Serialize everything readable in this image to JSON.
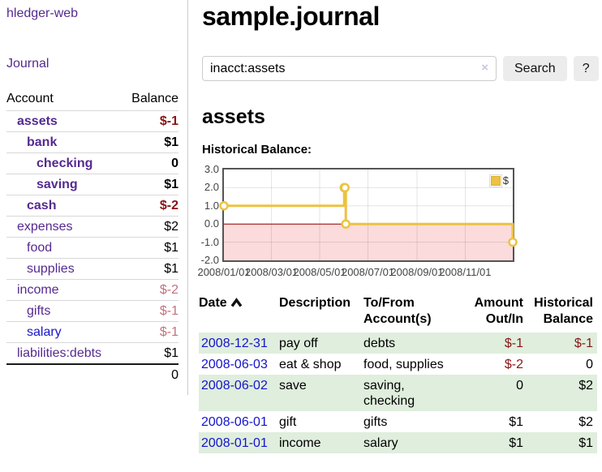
{
  "app": {
    "title": "hledger-web"
  },
  "sidebar": {
    "journal_link": "Journal",
    "accounts": {
      "headers": {
        "account": "Account",
        "balance": "Balance"
      },
      "rows": [
        {
          "account": "assets",
          "balance": "$-1",
          "level": 1
        },
        {
          "account": "bank",
          "balance": "$1",
          "level": 2
        },
        {
          "account": "checking",
          "balance": "0",
          "level": 3
        },
        {
          "account": "saving",
          "balance": "$1",
          "level": 3
        },
        {
          "account": "cash",
          "balance": "$-2",
          "level": 2
        },
        {
          "account": "expenses",
          "balance": "$2",
          "level": 1
        },
        {
          "account": "food",
          "balance": "$1",
          "level": 2
        },
        {
          "account": "supplies",
          "balance": "$1",
          "level": 2
        },
        {
          "account": "income",
          "balance": "$-2",
          "level": 1
        },
        {
          "account": "gifts",
          "balance": "$-1",
          "level": 2
        },
        {
          "account": "salary",
          "balance": "$-1",
          "level": 2
        },
        {
          "account": "liabilities:debts",
          "balance": "$1",
          "level": 1
        }
      ],
      "total": "0"
    }
  },
  "main": {
    "title": "sample.journal",
    "search": {
      "value": "inacct:assets",
      "clear_icon": "×",
      "button_label": "Search",
      "help_label": "?"
    },
    "account_heading": "assets",
    "register": {
      "headers": {
        "date": "Date",
        "description": "Description",
        "accounts_line1": "To/From",
        "accounts_line2": "Account(s)",
        "amount_line1": "Amount",
        "amount_line2": "Out/In",
        "balance_line1": "Historical",
        "balance_line2": "Balance"
      },
      "rows": [
        {
          "date": "2008-12-31",
          "description": "pay off",
          "accounts": "debts",
          "amount": "$-1",
          "balance": "$-1"
        },
        {
          "date": "2008-06-03",
          "description": "eat & shop",
          "accounts": "food, supplies",
          "amount": "$-2",
          "balance": "0"
        },
        {
          "date": "2008-06-02",
          "description": "save",
          "accounts": "saving, checking",
          "amount": "0",
          "balance": "$2"
        },
        {
          "date": "2008-06-01",
          "description": "gift",
          "accounts": "gifts",
          "amount": "$1",
          "balance": "$2"
        },
        {
          "date": "2008-01-01",
          "description": "income",
          "accounts": "salary",
          "amount": "$1",
          "balance": "$1"
        }
      ]
    }
  },
  "chart_data": {
    "type": "line",
    "title": "Historical Balance:",
    "steps": true,
    "series": [
      {
        "name": "$",
        "color": "#edc240",
        "points": [
          [
            "2008-01-01",
            1
          ],
          [
            "2008-06-01",
            2
          ],
          [
            "2008-06-02",
            2
          ],
          [
            "2008-06-03",
            0
          ],
          [
            "2008-12-31",
            -1
          ]
        ]
      }
    ],
    "xlim": [
      "2008-01-01",
      "2008-12-31"
    ],
    "ylim": [
      -2,
      3
    ],
    "x_ticks": [
      "2008/01/01",
      "2008/03/01",
      "2008/05/01",
      "2008/07/01",
      "2008/09/01",
      "2008/11/01"
    ],
    "y_ticks": [
      "3.0",
      "2.0",
      "1.0",
      "0.0",
      "-1.0",
      "-2.0"
    ],
    "grid": true,
    "negative_region_color": "#fbdbdb",
    "zero_line_color": "#8b0000",
    "legend": {
      "label": "$",
      "position": "top-right"
    }
  },
  "colors": {
    "link_purple": "#552a90",
    "link_blue": "#1414cc",
    "negative": "#8b1414",
    "negative_muted": "#c4717d",
    "row_stripe_green": "#dfeedd",
    "chart_series_gold": "#edc240",
    "button_bg": "#ececec"
  }
}
